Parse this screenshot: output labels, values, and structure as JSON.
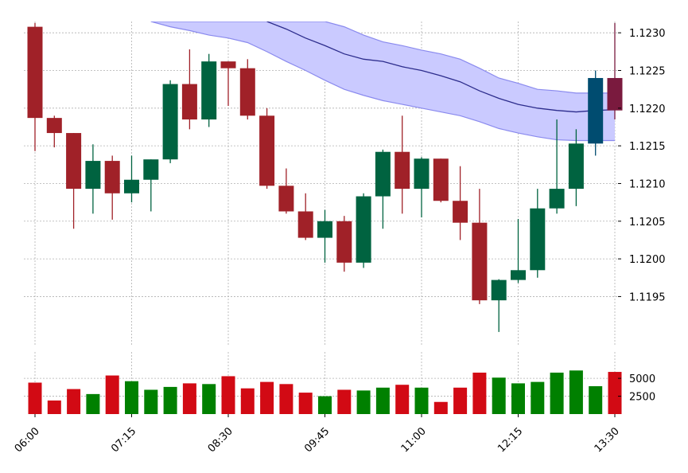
{
  "chart_data": {
    "type": "candlestick",
    "x_tick_labels": [
      "06:00",
      "07:15",
      "08:30",
      "09:45",
      "11:00",
      "12:15",
      "13:30"
    ],
    "x_tick_index": [
      0,
      5,
      10,
      15,
      20,
      25,
      30
    ],
    "price_axis": {
      "ylim": [
        1.11905,
        1.12315
      ],
      "ticks": [
        1.1195,
        1.12,
        1.1205,
        1.121,
        1.1215,
        1.122,
        1.1225,
        1.123
      ],
      "tick_labels": [
        "1.1195",
        "1.1200",
        "1.1205",
        "1.1210",
        "1.1215",
        "1.1220",
        "1.1225",
        "1.1230"
      ],
      "position": "right"
    },
    "volume_axis": {
      "ylim": [
        0,
        7800
      ],
      "ticks": [
        2500,
        5000
      ],
      "tick_labels": [
        "2500",
        "5000"
      ],
      "position": "right"
    },
    "grid": true,
    "colors": {
      "up": "#006340",
      "down": "#A02128",
      "highlight": "#004C70",
      "highlight_down": "#7A1A3E",
      "vol_up": "#008000",
      "vol_down": "#D20A14",
      "band_fill": "#CACAFF",
      "band_edge": "#8A8AEE",
      "band_mid": "#2C2C8C"
    },
    "candles": [
      {
        "open": 1.12308,
        "high": 1.12313,
        "low": 1.12143,
        "close": 1.12187,
        "volume": 4400
      },
      {
        "open": 1.12187,
        "high": 1.1219,
        "low": 1.12148,
        "close": 1.12167,
        "volume": 1900
      },
      {
        "open": 1.12167,
        "high": 1.12167,
        "low": 1.1204,
        "close": 1.12093,
        "volume": 3500
      },
      {
        "open": 1.12093,
        "high": 1.12152,
        "low": 1.1206,
        "close": 1.1213,
        "volume": 2800
      },
      {
        "open": 1.1213,
        "high": 1.12137,
        "low": 1.12052,
        "close": 1.12087,
        "volume": 5400
      },
      {
        "open": 1.12087,
        "high": 1.12137,
        "low": 1.12075,
        "close": 1.12105,
        "volume": 4600
      },
      {
        "open": 1.12105,
        "high": 1.12132,
        "low": 1.12063,
        "close": 1.12132,
        "volume": 3400
      },
      {
        "open": 1.12132,
        "high": 1.12237,
        "low": 1.12127,
        "close": 1.12232,
        "volume": 3800
      },
      {
        "open": 1.12232,
        "high": 1.12278,
        "low": 1.12172,
        "close": 1.12185,
        "volume": 4300
      },
      {
        "open": 1.12185,
        "high": 1.12272,
        "low": 1.12175,
        "close": 1.12262,
        "volume": 4200
      },
      {
        "open": 1.12262,
        "high": 1.12262,
        "low": 1.12203,
        "close": 1.12253,
        "volume": 5300
      },
      {
        "open": 1.12253,
        "high": 1.12265,
        "low": 1.12185,
        "close": 1.1219,
        "volume": 3600
      },
      {
        "open": 1.1219,
        "high": 1.122,
        "low": 1.12093,
        "close": 1.12097,
        "volume": 4500
      },
      {
        "open": 1.12097,
        "high": 1.1212,
        "low": 1.1206,
        "close": 1.12063,
        "volume": 4200
      },
      {
        "open": 1.12063,
        "high": 1.12087,
        "low": 1.12025,
        "close": 1.12028,
        "volume": 3000
      },
      {
        "open": 1.12028,
        "high": 1.12065,
        "low": 1.11995,
        "close": 1.1205,
        "volume": 2500
      },
      {
        "open": 1.1205,
        "high": 1.12057,
        "low": 1.11983,
        "close": 1.11995,
        "volume": 3400
      },
      {
        "open": 1.11995,
        "high": 1.12087,
        "low": 1.11988,
        "close": 1.12083,
        "volume": 3300
      },
      {
        "open": 1.12083,
        "high": 1.12145,
        "low": 1.1204,
        "close": 1.12142,
        "volume": 3700
      },
      {
        "open": 1.12142,
        "high": 1.1219,
        "low": 1.1206,
        "close": 1.12093,
        "volume": 4100
      },
      {
        "open": 1.12093,
        "high": 1.12135,
        "low": 1.12055,
        "close": 1.12133,
        "volume": 3700
      },
      {
        "open": 1.12133,
        "high": 1.12133,
        "low": 1.12075,
        "close": 1.12077,
        "volume": 1700
      },
      {
        "open": 1.12077,
        "high": 1.12123,
        "low": 1.12025,
        "close": 1.12048,
        "volume": 3700
      },
      {
        "open": 1.12048,
        "high": 1.12093,
        "low": 1.1194,
        "close": 1.11945,
        "volume": 5800
      },
      {
        "open": 1.11945,
        "high": 1.11973,
        "low": 1.11903,
        "close": 1.11972,
        "volume": 5100
      },
      {
        "open": 1.11972,
        "high": 1.12053,
        "low": 1.11968,
        "close": 1.11985,
        "volume": 4300
      },
      {
        "open": 1.11985,
        "high": 1.12093,
        "low": 1.11975,
        "close": 1.12067,
        "volume": 4500
      },
      {
        "open": 1.12067,
        "high": 1.12185,
        "low": 1.1206,
        "close": 1.12093,
        "volume": 5800
      },
      {
        "open": 1.12093,
        "high": 1.12172,
        "low": 1.1207,
        "close": 1.12153,
        "volume": 6100
      },
      {
        "open": 1.12153,
        "high": 1.1225,
        "low": 1.12137,
        "close": 1.1224,
        "volume": 3900,
        "highlight": true
      },
      {
        "open": 1.1224,
        "high": 1.12313,
        "low": 1.12185,
        "close": 1.12197,
        "volume": 5900,
        "highlight": true
      }
    ],
    "band": {
      "upper": [
        null,
        null,
        null,
        null,
        null,
        null,
        1.12315,
        1.12315,
        1.12315,
        1.12315,
        1.12315,
        1.12315,
        1.12315,
        1.12315,
        1.12315,
        1.12315,
        1.12308,
        1.12297,
        1.12288,
        1.12283,
        1.12277,
        1.12272,
        1.12265,
        1.12253,
        1.1224,
        1.12233,
        1.12225,
        1.12223,
        1.1222,
        1.1222,
        1.1222
      ],
      "middle": [
        null,
        null,
        null,
        null,
        null,
        null,
        null,
        null,
        null,
        null,
        null,
        null,
        1.12315,
        1.12305,
        1.12293,
        1.12283,
        1.12272,
        1.12265,
        1.12262,
        1.12255,
        1.1225,
        1.12243,
        1.12235,
        1.12223,
        1.12213,
        1.12205,
        1.122,
        1.12197,
        1.12195,
        1.12197,
        1.12198
      ],
      "lower": [
        null,
        null,
        null,
        null,
        null,
        null,
        1.12315,
        1.12308,
        1.12303,
        1.12297,
        1.12293,
        1.12287,
        1.12275,
        1.12262,
        1.1225,
        1.12237,
        1.12225,
        1.12217,
        1.1221,
        1.12205,
        1.122,
        1.12195,
        1.1219,
        1.12182,
        1.12173,
        1.12167,
        1.12162,
        1.12158,
        1.12157,
        1.12157,
        1.12157
      ]
    }
  }
}
